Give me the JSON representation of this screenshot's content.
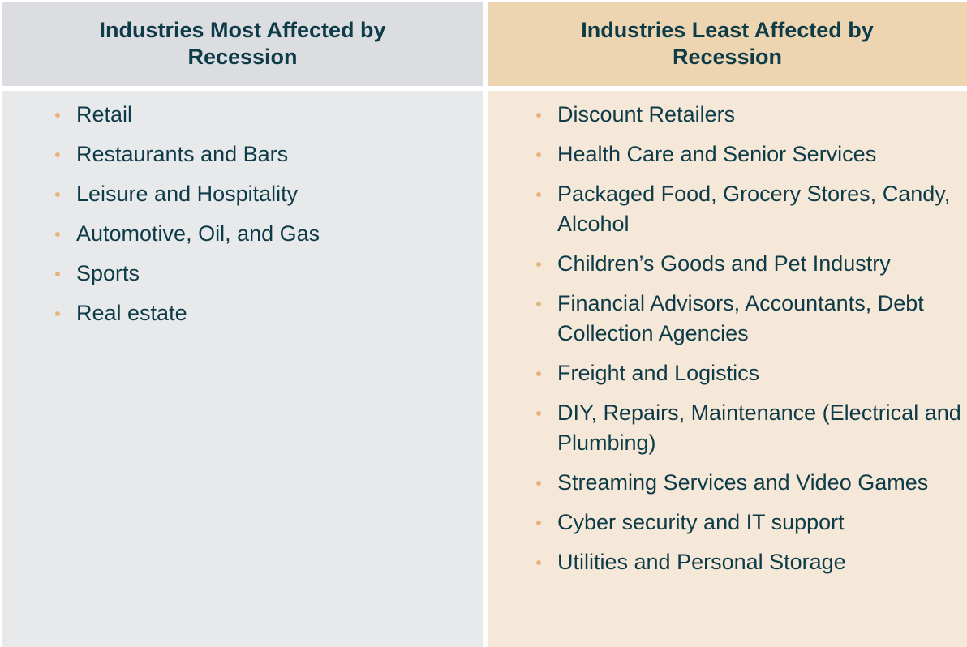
{
  "left": {
    "header": "Industries Most Affected by Recession",
    "items": [
      "Retail",
      "Restaurants and Bars",
      "Leisure and Hospitality",
      "Automotive, Oil, and Gas",
      "Sports",
      "Real estate"
    ]
  },
  "right": {
    "header": "Industries Least Affected by Recession",
    "items": [
      "Discount Retailers",
      "Health Care and Senior Services",
      "Packaged Food, Grocery Stores, Candy, Alcohol",
      "Children’s Goods and Pet Industry",
      "Financial Advisors, Accountants, Debt Collection Agencies",
      "Freight and Logistics",
      "DIY, Repairs, Maintenance (Electrical and Plumbing)",
      "Streaming Services and Video Games",
      "Cyber security and IT support",
      "Utilities and Personal Storage"
    ]
  },
  "colors": {
    "text": "#0d3b47",
    "bullet": "#e3b57c",
    "left_header": "#dcdde0",
    "left_body": "#e8e9eb",
    "right_header": "#eed5b1",
    "right_body": "#f6e8d8"
  }
}
